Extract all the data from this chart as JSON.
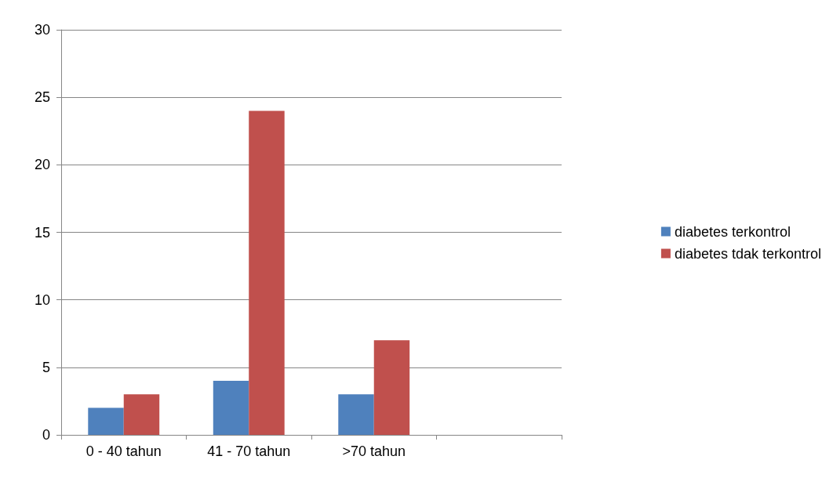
{
  "chart_data": {
    "type": "bar",
    "categories": [
      "0 - 40 tahun",
      "41 - 70 tahun",
      ">70 tahun",
      null
    ],
    "series": [
      {
        "name": "diabetes terkontrol",
        "color": "#4f81bd",
        "values": [
          2,
          4,
          3,
          null
        ]
      },
      {
        "name": "diabetes tdak terkontrol",
        "color": "#c0504d",
        "values": [
          3,
          24,
          7,
          null
        ]
      }
    ],
    "ylim": [
      0,
      30
    ],
    "yticks": [
      0,
      5,
      10,
      15,
      20,
      25,
      30
    ],
    "grid": "y",
    "legend": "right"
  }
}
